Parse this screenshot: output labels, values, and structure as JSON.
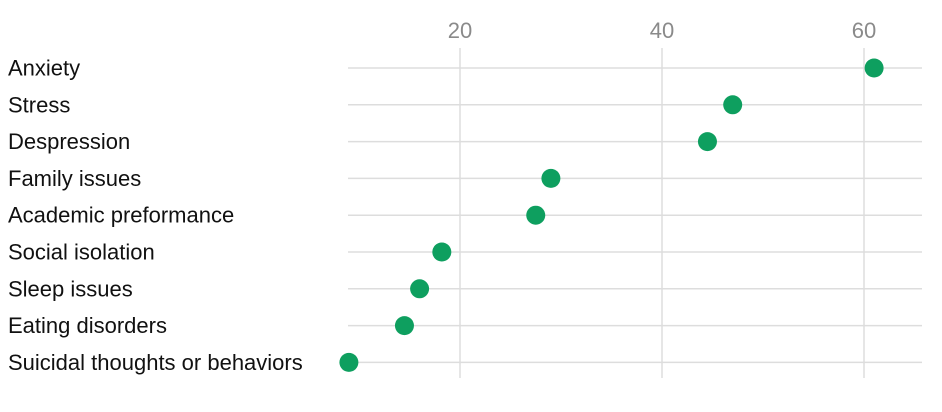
{
  "chart_data": {
    "type": "scatter",
    "title": "",
    "xlabel": "",
    "ylabel": "",
    "categories": [
      "Anxiety",
      "Stress",
      "Despression",
      "Family issues",
      "Academic preformance",
      "Social isolation",
      "Sleep issues",
      "Eating disorders",
      "Suicidal thoughts or behaviors"
    ],
    "values": [
      61,
      47,
      44.5,
      29,
      27.5,
      18.2,
      16,
      14.5,
      9
    ],
    "xlim": [
      9,
      62.5
    ],
    "x_ticks": [
      20,
      40,
      60
    ],
    "x_tick_labels": [
      "20",
      "40",
      "60"
    ],
    "x_axis_position": "top",
    "grid": true,
    "legend": "none"
  },
  "colors": {
    "point": "#0e9f5f",
    "grid": "#dddddd",
    "tick_text": "#8a8a8a",
    "label_text": "#111111"
  }
}
